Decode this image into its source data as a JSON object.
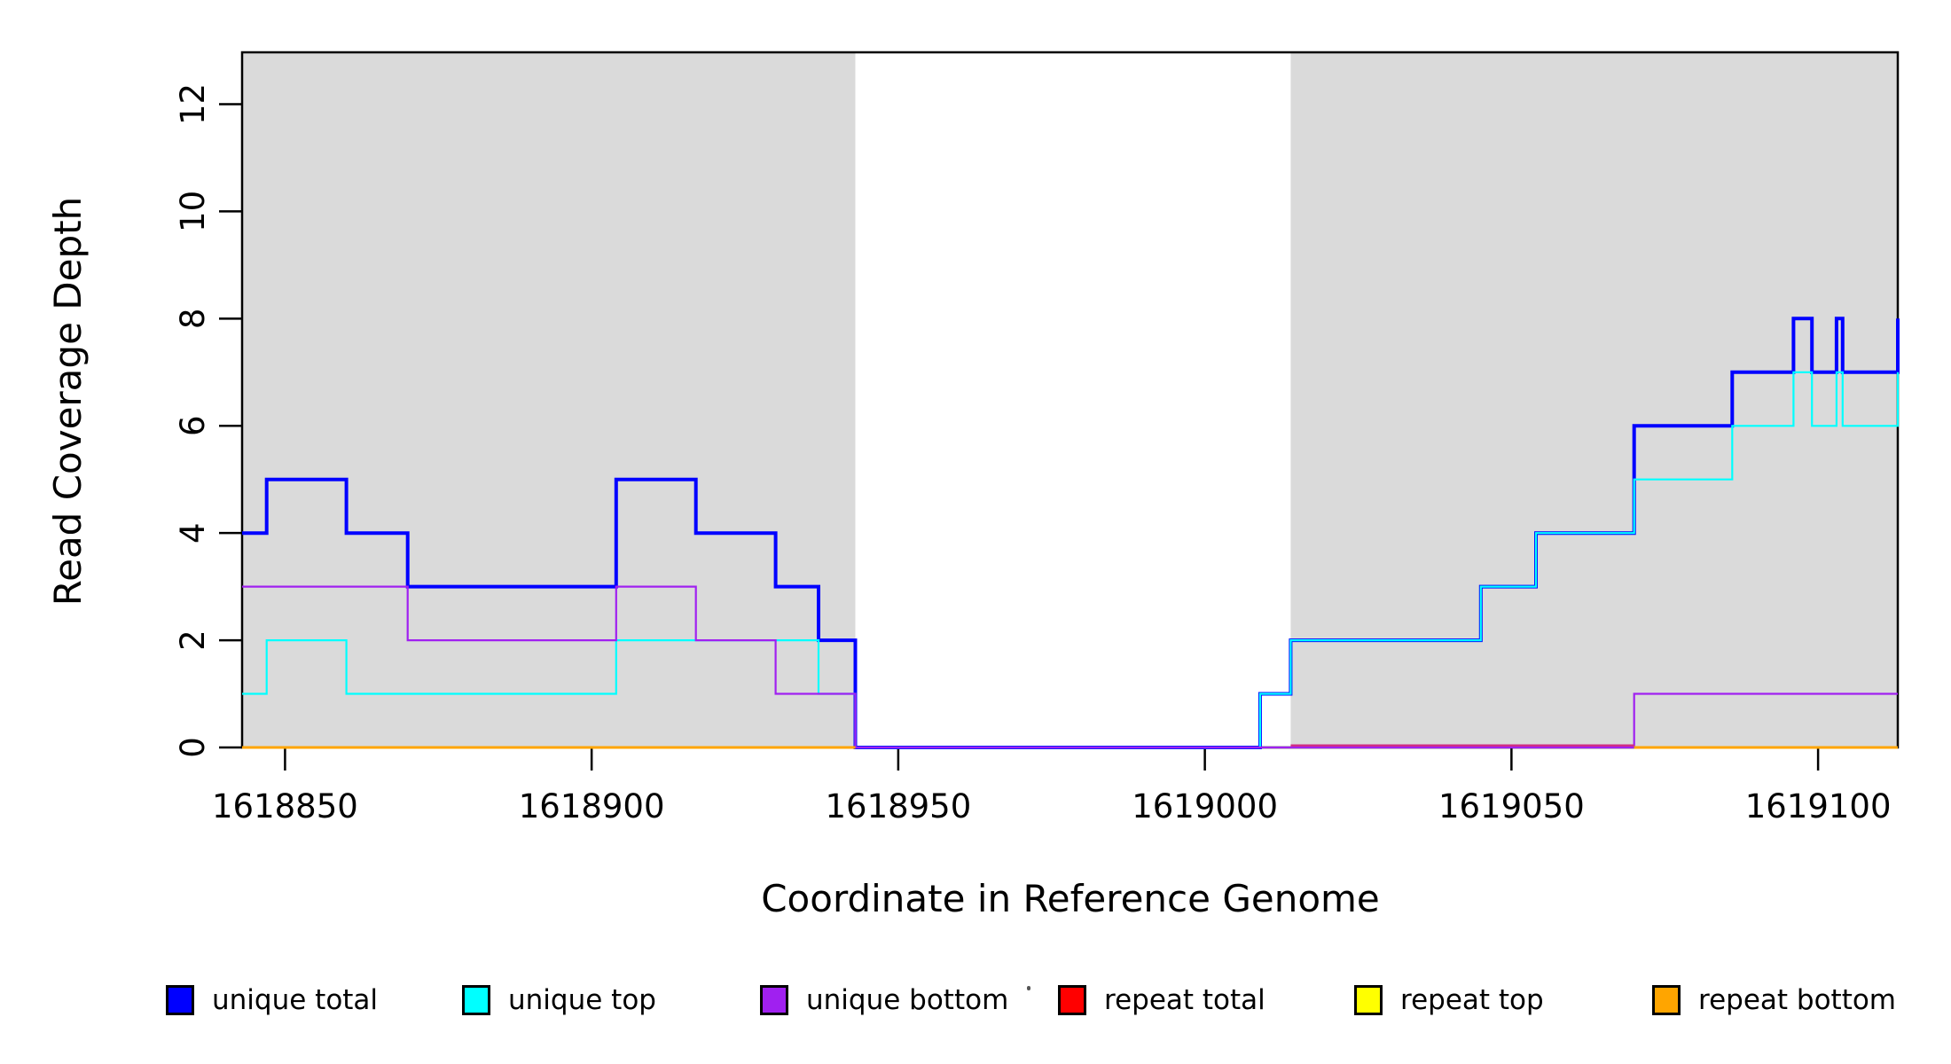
{
  "axes": {
    "x": {
      "label": "Coordinate in Reference Genome",
      "ticks": [
        1618850,
        1618900,
        1618950,
        1619000,
        1619050,
        1619100
      ],
      "range": [
        1618843,
        1619113
      ]
    },
    "y": {
      "label": "Read Coverage Depth",
      "ticks": [
        0,
        2,
        4,
        6,
        8,
        10,
        12
      ],
      "range": [
        0,
        13
      ]
    }
  },
  "chart_data": {
    "type": "line",
    "subtype": "step-after",
    "title": "",
    "xlabel": "Coordinate in Reference Genome",
    "ylabel": "Read Coverage Depth",
    "xlim": [
      1618843,
      1619113
    ],
    "ylim": [
      0,
      13
    ],
    "grid": false,
    "legend_position": "bottom",
    "shaded_regions": [
      {
        "from": 1618843,
        "to": 1618943,
        "color": "#DADADA",
        "meaning": "repeat region shading"
      },
      {
        "from": 1619014,
        "to": 1619113,
        "color": "#DADADA",
        "meaning": "repeat region shading"
      }
    ],
    "series": [
      {
        "name": "unique total",
        "color": "#0000FF",
        "line_width": 4,
        "points": [
          [
            1618843,
            4
          ],
          [
            1618847,
            5
          ],
          [
            1618860,
            4
          ],
          [
            1618870,
            3
          ],
          [
            1618904,
            5
          ],
          [
            1618917,
            4
          ],
          [
            1618930,
            3
          ],
          [
            1618937,
            2
          ],
          [
            1618943,
            0
          ],
          [
            1619009,
            1
          ],
          [
            1619014,
            2
          ],
          [
            1619045,
            3
          ],
          [
            1619054,
            4
          ],
          [
            1619070,
            6
          ],
          [
            1619086,
            7
          ],
          [
            1619096,
            8
          ],
          [
            1619099,
            7
          ],
          [
            1619103,
            8
          ],
          [
            1619104,
            7
          ],
          [
            1619113,
            8
          ]
        ]
      },
      {
        "name": "unique top",
        "color": "#00FFFF",
        "line_width": 2.2,
        "points": [
          [
            1618843,
            1
          ],
          [
            1618847,
            2
          ],
          [
            1618860,
            1
          ],
          [
            1618904,
            2
          ],
          [
            1618937,
            1
          ],
          [
            1618943,
            0
          ],
          [
            1619009,
            1
          ],
          [
            1619014,
            2
          ],
          [
            1619045,
            3
          ],
          [
            1619054,
            4
          ],
          [
            1619070,
            5
          ],
          [
            1619086,
            6
          ],
          [
            1619096,
            7
          ],
          [
            1619099,
            6
          ],
          [
            1619103,
            7
          ],
          [
            1619104,
            6
          ],
          [
            1619113,
            7
          ]
        ]
      },
      {
        "name": "unique bottom",
        "color": "#A020F0",
        "line_width": 2.2,
        "points": [
          [
            1618843,
            3
          ],
          [
            1618870,
            2
          ],
          [
            1618904,
            3
          ],
          [
            1618917,
            2
          ],
          [
            1618930,
            1
          ],
          [
            1618943,
            0
          ],
          [
            1619070,
            1
          ]
        ]
      },
      {
        "name": "repeat total",
        "color": "#FF0000",
        "line_width": 2.2,
        "points": [
          [
            1618843,
            0
          ]
        ]
      },
      {
        "name": "repeat top",
        "color": "#FFFF00",
        "line_width": 2.2,
        "points": [
          [
            1618843,
            0
          ]
        ]
      },
      {
        "name": "repeat bottom",
        "color": "#FFA500",
        "line_width": 3,
        "points": [
          [
            1618843,
            0
          ]
        ]
      }
    ],
    "draw_order": [
      "unique total",
      "unique top",
      "unique bottom"
    ],
    "zero_line_segments": [
      {
        "from": 1618843,
        "to": 1618943,
        "color": "#FFA500",
        "width": 3,
        "dy": 0
      },
      {
        "from": 1619014,
        "to": 1619070,
        "color": "#D02D86",
        "width": 2.5,
        "dy": -2.2
      },
      {
        "from": 1619070,
        "to": 1619113,
        "color": "#FFA500",
        "width": 3,
        "dy": 0
      }
    ]
  },
  "legend": {
    "items": [
      {
        "label": "unique total",
        "color": "#0000FF"
      },
      {
        "label": "unique top",
        "color": "#00FFFF"
      },
      {
        "label": "unique bottom",
        "color": "#A020F0"
      },
      {
        "label": "repeat total",
        "color": "#FF0000"
      },
      {
        "label": "repeat top",
        "color": "#FFFF00"
      },
      {
        "label": "repeat bottom",
        "color": "#FFA500"
      }
    ]
  }
}
